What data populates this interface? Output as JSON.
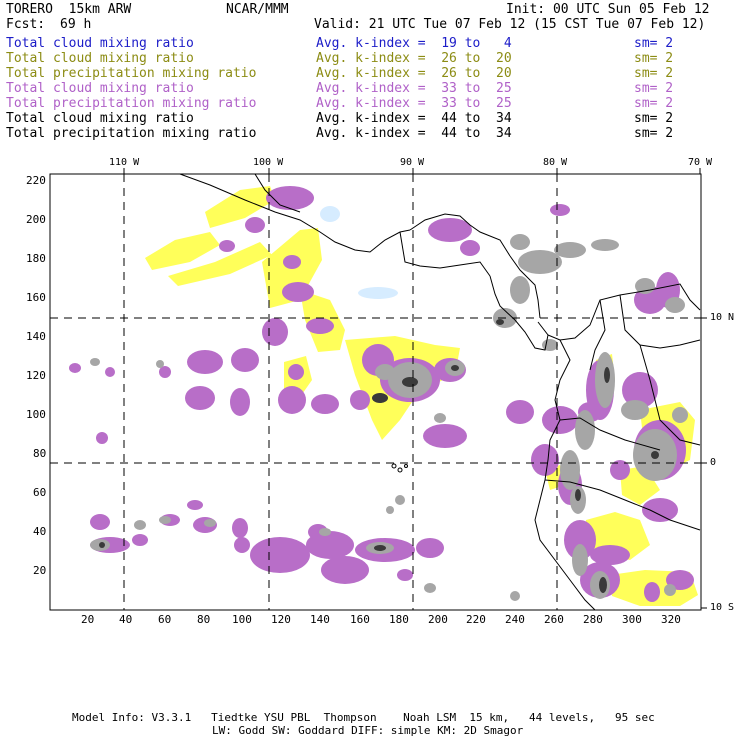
{
  "header": {
    "model": "TORERO  15km ARW",
    "org": "NCAR/MMM",
    "init": "Init: 00 UTC Sun 05 Feb 12",
    "fcst_label": "Fcst:",
    "fcst_value": "69 h",
    "valid": "Valid: 21 UTC Tue 07 Feb 12 (15 CST Tue 07 Feb 12)"
  },
  "legend": [
    {
      "field": "Total cloud mixing ratio",
      "kidx": "Avg. k-index =  19 to   4",
      "sm": "sm= 2",
      "color": "#1c1cc8"
    },
    {
      "field": "Total cloud mixing ratio",
      "kidx": "Avg. k-index =  26 to  20",
      "sm": "sm= 2",
      "color": "#8c8c14"
    },
    {
      "field": "Total precipitation mixing ratio",
      "kidx": "Avg. k-index =  26 to  20",
      "sm": "sm= 2",
      "color": "#8c8c14"
    },
    {
      "field": "Total cloud mixing ratio",
      "kidx": "Avg. k-index =  33 to  25",
      "sm": "sm= 2",
      "color": "#b061c8"
    },
    {
      "field": "Total precipitation mixing ratio",
      "kidx": "Avg. k-index =  33 to  25",
      "sm": "sm= 2",
      "color": "#b061c8"
    },
    {
      "field": "Total cloud mixing ratio",
      "kidx": "Avg. k-index =  44 to  34",
      "sm": "sm= 2",
      "color": "#000000"
    },
    {
      "field": "Total precipitation mixing ratio",
      "kidx": "Avg. k-index =  44 to  34",
      "sm": "sm= 2",
      "color": "#000000"
    }
  ],
  "map": {
    "lon_labels": [
      "110 W",
      "100 W",
      "90 W",
      "80 W",
      "70 W"
    ],
    "lat_labels": [
      "10 N",
      "0",
      "10 S"
    ],
    "y_ticks": [
      "220",
      "200",
      "180",
      "160",
      "140",
      "120",
      "100",
      "80",
      "60",
      "40",
      "20"
    ],
    "x_ticks": [
      "20",
      "40",
      "60",
      "80",
      "100",
      "120",
      "140",
      "160",
      "180",
      "200",
      "220",
      "240",
      "260",
      "280",
      "300",
      "320"
    ],
    "fill_colors": {
      "lightblue": "#d6ecff",
      "yellow": "#ffff5a",
      "purple": "#b86ec8",
      "gray": "#a6a6a6",
      "dark": "#3a3a3a"
    }
  },
  "footer": {
    "line1": "Model Info: V3.3.1   Tiedtke YSU PBL  Thompson    Noah LSM  15 km,   44 levels,   95 sec",
    "line2": "LW: Godd SW: Goddard DIFF: simple KM: 2D Smagor"
  }
}
